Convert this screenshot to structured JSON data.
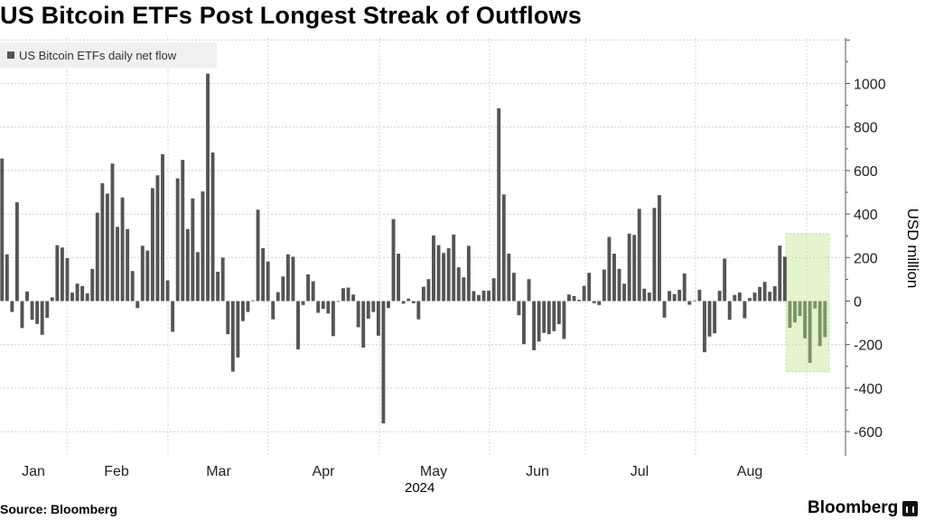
{
  "title": "US Bitcoin ETFs Post Longest Streak of Outflows",
  "source": "Source: Bloomberg",
  "brand": "Bloomberg",
  "colors": {
    "bar": "#555555",
    "highlight_bar": "#7d9466",
    "highlight_box": "#e3f4cf"
  },
  "chart_data": {
    "type": "bar",
    "title": "US Bitcoin ETFs Post Longest Streak of Outflows",
    "legend": [
      "US Bitcoin ETFs daily net flow"
    ],
    "legend_position": "top-left",
    "ylabel": "USD million",
    "xlabel": "2024",
    "ylim": [
      -700,
      1200
    ],
    "yticks": [
      -600,
      -400,
      -200,
      0,
      200,
      400,
      600,
      800,
      1000
    ],
    "xtick_labels": [
      "Jan",
      "Feb",
      "Mar",
      "Apr",
      "May",
      "Jun",
      "Jul",
      "Aug"
    ],
    "grid": true,
    "series": [
      {
        "name": "US Bitcoin ETFs daily net flow",
        "values": [
          655,
          215,
          -50,
          454,
          -124,
          44,
          -86,
          -105,
          -155,
          -77,
          17,
          257,
          246,
          197,
          39,
          80,
          69,
          35,
          148,
          406,
          542,
          494,
          632,
          341,
          476,
          331,
          138,
          -32,
          254,
          232,
          519,
          578,
          675,
          95,
          -141,
          564,
          649,
          331,
          472,
          225,
          504,
          1045,
          683,
          135,
          200,
          -152,
          -324,
          -259,
          -92,
          -50,
          3,
          420,
          243,
          182,
          -84,
          41,
          113,
          215,
          204,
          -222,
          -18,
          123,
          91,
          -54,
          -36,
          -57,
          -161,
          -3,
          59,
          62,
          30,
          -120,
          -214,
          -81,
          -50,
          -159,
          -562,
          -32,
          377,
          218,
          -12,
          11,
          -10,
          -84,
          66,
          101,
          302,
          257,
          221,
          243,
          306,
          155,
          109,
          254,
          46,
          28,
          48,
          48,
          105,
          886,
          490,
          218,
          130,
          -65,
          -198,
          101,
          -226,
          -186,
          -146,
          -152,
          -138,
          -106,
          -174,
          30,
          23,
          6,
          70,
          130,
          -10,
          -18,
          145,
          295,
          218,
          148,
          80,
          310,
          304,
          424,
          57,
          39,
          428,
          487,
          -76,
          46,
          32,
          52,
          127,
          -17,
          3,
          52,
          -235,
          -163,
          -148,
          47,
          195,
          -86,
          28,
          39,
          -79,
          14,
          39,
          65,
          88,
          43,
          68,
          255,
          204,
          -123,
          -98,
          -69,
          -171,
          -284,
          -34,
          -207,
          -166
        ]
      }
    ],
    "highlight": {
      "last_n_bars": 8,
      "note": "outflow streak highlighted in green"
    }
  }
}
